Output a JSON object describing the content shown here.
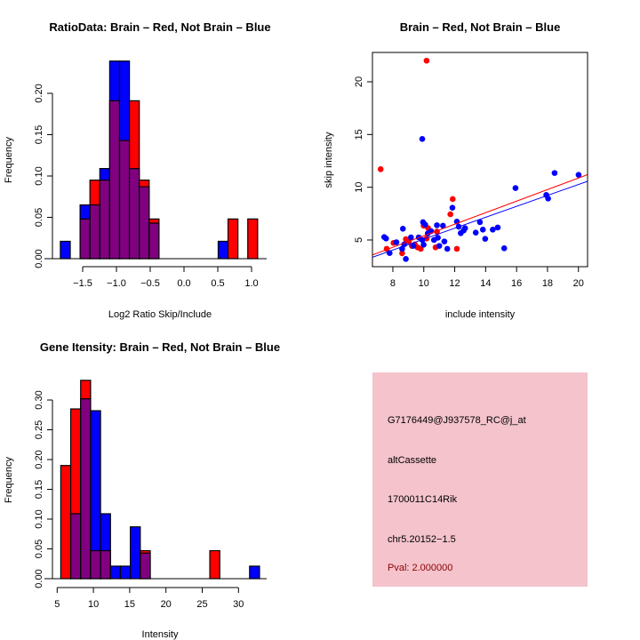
{
  "colors": {
    "red": "#ff0000",
    "blue": "#0000ff",
    "overlap": "#800080",
    "panel_bg": "#f4c3cc",
    "pval": "#8b0000"
  },
  "chart_data": [
    {
      "type": "bar",
      "title": "RatioData: Brain – Red, Not Brain – Blue",
      "xlabel": "Log2 Ratio Skip/Include",
      "ylabel": "Frequency",
      "bin_start": -1.83,
      "bin_width": 0.146,
      "xticks": [
        -1.5,
        -1.0,
        -0.5,
        0.0,
        0.5,
        1.0
      ],
      "xtick_labels": [
        "−1.5",
        "−1.0",
        "−0.5",
        "0.0",
        "0.5",
        "1.0"
      ],
      "yticks": [
        0,
        0.05,
        0.1,
        0.15,
        0.2
      ],
      "ytick_labels": [
        "0.00",
        "0.05",
        "0.10",
        "0.15",
        "0.20"
      ],
      "series": [
        {
          "name": "Brain",
          "color": "red",
          "values": [
            0,
            0,
            0.048,
            0.095,
            0.095,
            0.191,
            0.143,
            0.191,
            0.095,
            0.048,
            0,
            0,
            0,
            0,
            0,
            0,
            0,
            0.048,
            0,
            0.048
          ]
        },
        {
          "name": "Not Brain",
          "color": "blue",
          "values": [
            0.021,
            0,
            0.065,
            0.065,
            0.109,
            0.239,
            0.239,
            0.109,
            0.087,
            0.043,
            0,
            0,
            0,
            0,
            0,
            0,
            0.021,
            0,
            0,
            0
          ]
        }
      ]
    },
    {
      "type": "scatter",
      "title": "Brain – Red, Not Brain – Blue",
      "xlabel": "include intensity",
      "ylabel": "skip intensity",
      "xlim": [
        6.68,
        20.59
      ],
      "ylim": [
        2.47,
        22.78
      ],
      "xticks": [
        8,
        10,
        12,
        14,
        16,
        18,
        20
      ],
      "xtick_labels": [
        "8",
        "10",
        "12",
        "14",
        "16",
        "18",
        "20"
      ],
      "yticks": [
        5,
        10,
        15,
        20
      ],
      "ytick_labels": [
        "5",
        "10",
        "15",
        "20"
      ],
      "series": [
        {
          "name": "Brain",
          "color": "red",
          "fit": {
            "intercept": -0.062,
            "slope": 0.5465
          },
          "points": [
            [
              7.21,
              11.71
            ],
            [
              10.18,
              22.0
            ],
            [
              11.87,
              8.88
            ],
            [
              11.72,
              7.44
            ],
            [
              12.14,
              4.16
            ],
            [
              8.04,
              4.72
            ],
            [
              7.6,
              4.16
            ],
            [
              8.6,
              3.74
            ],
            [
              8.84,
              5.08
            ],
            [
              9.03,
              4.86
            ],
            [
              9.42,
              4.58
            ],
            [
              9.6,
              4.3
            ],
            [
              9.8,
              4.16
            ],
            [
              9.99,
              6.35
            ],
            [
              10.28,
              6.12
            ],
            [
              10.76,
              4.3
            ],
            [
              10.85,
              5.79
            ],
            [
              10.18,
              5.14
            ],
            [
              9.23,
              4.44
            ]
          ]
        },
        {
          "name": "Not Brain",
          "color": "blue",
          "fit": {
            "intercept": -0.1,
            "slope": 0.518
          },
          "points": [
            [
              9.9,
              14.58
            ],
            [
              15.93,
              9.92
            ],
            [
              18.46,
              11.35
            ],
            [
              20.01,
              11.18
            ],
            [
              17.92,
              9.27
            ],
            [
              18.04,
              8.93
            ],
            [
              11.85,
              8.06
            ],
            [
              12.14,
              6.74
            ],
            [
              13.63,
              6.69
            ],
            [
              13.82,
              5.98
            ],
            [
              13.36,
              5.7
            ],
            [
              13.97,
              5.11
            ],
            [
              14.46,
              5.98
            ],
            [
              14.78,
              6.18
            ],
            [
              15.2,
              4.21
            ],
            [
              7.44,
              5.28
            ],
            [
              7.56,
              5.14
            ],
            [
              8.23,
              4.78
            ],
            [
              7.79,
              3.76
            ],
            [
              8.65,
              6.07
            ],
            [
              8.6,
              4.16
            ],
            [
              8.84,
              3.2
            ],
            [
              8.73,
              4.58
            ],
            [
              9.17,
              5.25
            ],
            [
              9.32,
              4.44
            ],
            [
              9.67,
              5.25
            ],
            [
              9.95,
              6.69
            ],
            [
              10.09,
              6.46
            ],
            [
              9.99,
              4.55
            ],
            [
              9.9,
              5.0
            ],
            [
              10.26,
              5.62
            ],
            [
              10.66,
              5.0
            ],
            [
              10.85,
              6.4
            ],
            [
              10.91,
              5.22
            ],
            [
              11.0,
              4.44
            ],
            [
              11.24,
              6.35
            ],
            [
              11.33,
              4.86
            ],
            [
              11.52,
              4.16
            ],
            [
              12.26,
              6.26
            ],
            [
              12.39,
              5.65
            ],
            [
              12.58,
              5.9
            ],
            [
              12.67,
              6.12
            ],
            [
              10.47,
              5.84
            ]
          ]
        }
      ]
    },
    {
      "type": "bar",
      "title": "Gene Itensity: Brain – Red, Not Brain – Blue",
      "xlabel": "Intensity",
      "ylabel": "Frequency",
      "bin_start": 5.5,
      "bin_width": 1.37,
      "xticks": [
        5,
        10,
        15,
        20,
        25,
        30
      ],
      "xtick_labels": [
        "5",
        "10",
        "15",
        "20",
        "25",
        "30"
      ],
      "yticks": [
        0,
        0.05,
        0.1,
        0.15,
        0.2,
        0.25,
        0.3
      ],
      "ytick_labels": [
        "0.00",
        "0.05",
        "0.10",
        "0.15",
        "0.20",
        "0.25",
        "0.30"
      ],
      "series": [
        {
          "name": "Brain",
          "color": "red",
          "values": [
            0.19,
            0.285,
            0.333,
            0.047,
            0.047,
            0,
            0,
            0,
            0.047,
            0,
            0,
            0,
            0,
            0,
            0,
            0.047,
            0,
            0,
            0,
            0
          ]
        },
        {
          "name": "Not Brain",
          "color": "blue",
          "values": [
            0,
            0.109,
            0.302,
            0.282,
            0.109,
            0.021,
            0.021,
            0.087,
            0.043,
            0,
            0,
            0,
            0,
            0,
            0,
            0,
            0,
            0,
            0,
            0.021
          ]
        }
      ]
    }
  ],
  "info_panel": {
    "probe_id": "G7176449@J937578_RC@j_at",
    "event_type": "altCassette",
    "gene": "1700011C14Rik",
    "location": "chr5.20152−1.5",
    "pval": "Pval: 2.000000"
  }
}
